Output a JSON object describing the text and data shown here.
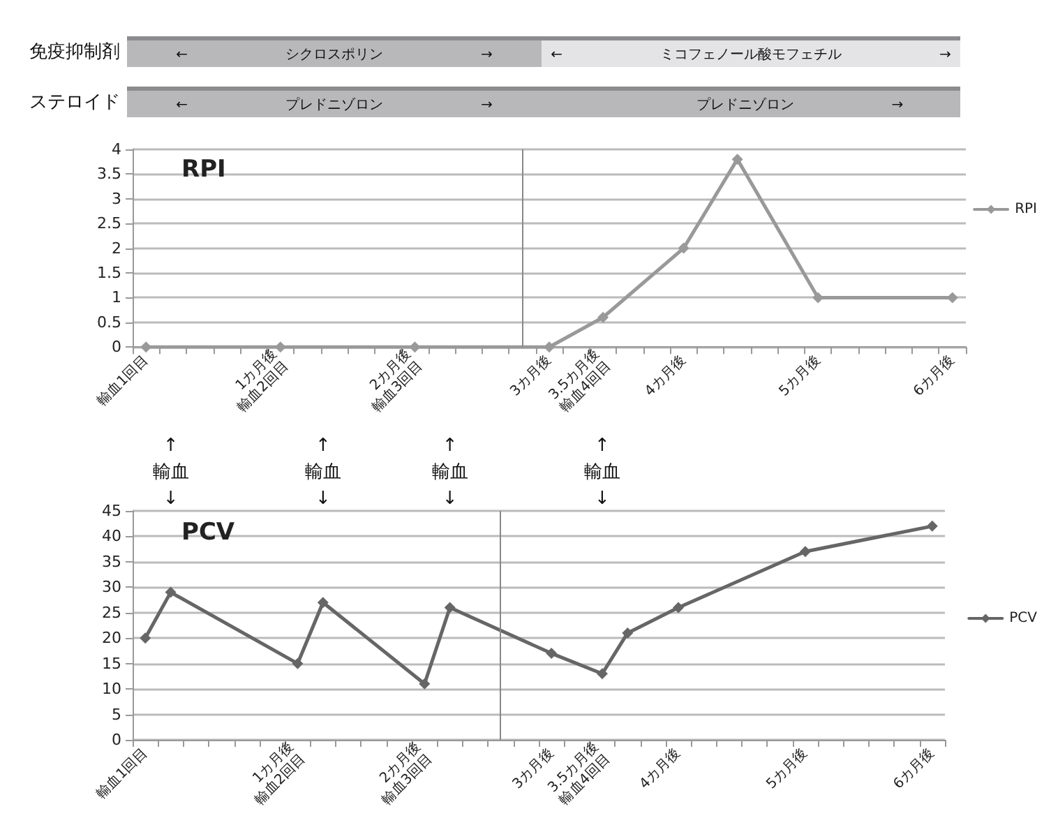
{
  "chart_data": [
    {
      "type": "line",
      "title": "RPI",
      "annotations": [
        "免疫抑制剤",
        "←　　　　　　　シクロスポリン　　　　　　　→",
        "←　　　　　　　ミコフェノール酸モフェチル　　　　　　　→",
        "ステロイド",
        "←　　　　　　　プレドニゾロン　　　　　　　→",
        "　　　　　　　プレドニゾロン　　　　　　　→"
      ],
      "categories": [
        "輸血1回目",
        null,
        null,
        null,
        null,
        "1カ月後\n輸血2回目",
        null,
        null,
        null,
        null,
        "2カ月後\n輸血3回目",
        null,
        null,
        null,
        null,
        "3カ月後",
        null,
        "3.5カ月後\n輸血4回目",
        null,
        null,
        "4カ月後",
        null,
        null,
        null,
        null,
        "5カ月後",
        null,
        null,
        null,
        null,
        "6カ月後"
      ],
      "series": [
        {
          "name": "RPI",
          "color": "#999999",
          "values": [
            0,
            null,
            null,
            null,
            null,
            0,
            null,
            null,
            null,
            null,
            0,
            null,
            null,
            null,
            null,
            0,
            null,
            0.6,
            null,
            null,
            2,
            null,
            3.8,
            null,
            null,
            1,
            null,
            null,
            null,
            null,
            1
          ]
        }
      ],
      "ylim": [
        0,
        4
      ],
      "yticks": [
        0,
        0.5,
        1,
        1.5,
        2,
        2.5,
        3,
        3.5,
        4
      ],
      "grid": "y",
      "legend": "right",
      "marker": "diamond",
      "line_style": "solid"
    },
    {
      "type": "line",
      "title": "PCV",
      "annotations": [
        "↑\n輸血\n↓",
        "↑\n輸血\n↓",
        "↑\n輸血\n↓",
        "↑\n輸血\n↓"
      ],
      "categories": [
        "輸血1回目",
        null,
        null,
        null,
        null,
        null,
        "1カ月後\n輸血2回目",
        null,
        null,
        null,
        null,
        "2カ月後\n輸血3回目",
        null,
        null,
        null,
        null,
        "3カ月後",
        null,
        "3.5カ月後\n輸血4回目",
        null,
        null,
        "4カ月後",
        null,
        null,
        null,
        null,
        "5カ月後",
        null,
        null,
        null,
        null,
        "6カ月後"
      ],
      "series": [
        {
          "name": "PCV",
          "color": "#666666",
          "values": [
            20,
            29,
            null,
            null,
            null,
            null,
            15,
            27,
            null,
            null,
            null,
            11,
            26,
            null,
            null,
            null,
            17,
            null,
            13,
            21,
            null,
            26,
            null,
            null,
            null,
            null,
            37,
            null,
            null,
            null,
            null,
            42
          ]
        }
      ],
      "ylim": [
        0,
        45
      ],
      "yticks": [
        0,
        5,
        10,
        15,
        20,
        25,
        30,
        35,
        40,
        45
      ],
      "grid": "y",
      "legend": "right",
      "marker": "diamond",
      "line_style": "solid"
    }
  ]
}
